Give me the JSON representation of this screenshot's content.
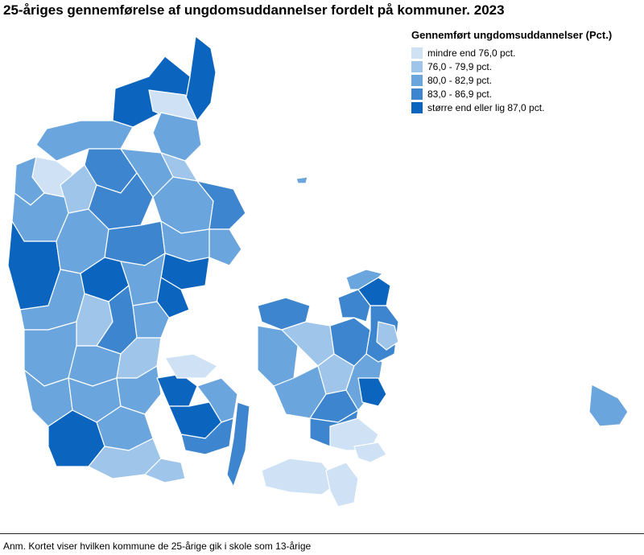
{
  "title": "25-åriges gennemførelse af ungdomsuddannelser fordelt på kommuner. 2023",
  "legend": {
    "title": "Gennemført ungdomsuddannelser (Pct.)",
    "items": [
      {
        "label": "mindre end 76,0 pct.",
        "color": "#cfe1f5"
      },
      {
        "label": "76,0 - 79,9 pct.",
        "color": "#9fc5ea"
      },
      {
        "label": "80,0 - 82,9 pct.",
        "color": "#6aa6dd"
      },
      {
        "label": "83,0 - 86,9 pct.",
        "color": "#3d86cf"
      },
      {
        "label": "større end eller lig 87,0 pct.",
        "color": "#0b64bd"
      }
    ]
  },
  "note": "Anm. Kortet viser hvilken kommune de 25-årige gik i skole som 13-årige"
}
